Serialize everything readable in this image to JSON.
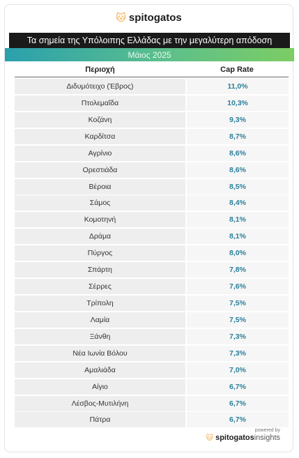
{
  "brand": {
    "name": "spitogatos",
    "icon": "cat-logo-icon"
  },
  "title": "Τα σημεία της Υπόλοιπης Ελλάδας με την μεγαλύτερη απόδοση",
  "date": "Μάιος 2025",
  "columns": {
    "area": "Περιοχή",
    "rate": "Cap Rate"
  },
  "rows": [
    {
      "area": "Διδυμότειχο (Έβρος)",
      "rate": "11,0%"
    },
    {
      "area": "Πτολεμαΐδα",
      "rate": "10,3%"
    },
    {
      "area": "Κοζάνη",
      "rate": "9,3%"
    },
    {
      "area": "Καρδίτσα",
      "rate": "8,7%"
    },
    {
      "area": "Αγρίνιο",
      "rate": "8,6%"
    },
    {
      "area": "Ορεστιάδα",
      "rate": "8,6%"
    },
    {
      "area": "Βέροια",
      "rate": "8,5%"
    },
    {
      "area": "Σάμος",
      "rate": "8,4%"
    },
    {
      "area": "Κομοτηνή",
      "rate": "8,1%"
    },
    {
      "area": "Δράμα",
      "rate": "8,1%"
    },
    {
      "area": "Πύργος",
      "rate": "8,0%"
    },
    {
      "area": "Σπάρτη",
      "rate": "7,8%"
    },
    {
      "area": "Σέρρες",
      "rate": "7,6%"
    },
    {
      "area": "Τρίπολη",
      "rate": "7,5%"
    },
    {
      "area": "Λαμία",
      "rate": "7,5%"
    },
    {
      "area": "Ξάνθη",
      "rate": "7,3%"
    },
    {
      "area": "Νέα Ιωνία Βόλου",
      "rate": "7,3%"
    },
    {
      "area": "Αμαλιάδα",
      "rate": "7,0%"
    },
    {
      "area": "Αίγιο",
      "rate": "6,7%"
    },
    {
      "area": "Λέσβος-Μυτιλήνη",
      "rate": "6,7%"
    },
    {
      "area": "Πάτρα",
      "rate": "6,7%"
    }
  ],
  "footer": {
    "powered": "powered by",
    "brand": "spitogatos",
    "suffix": "insights"
  },
  "colors": {
    "accent": "#f2a33a",
    "rate_text": "#2a7f9a",
    "title_bg": "#1a1a1a"
  }
}
